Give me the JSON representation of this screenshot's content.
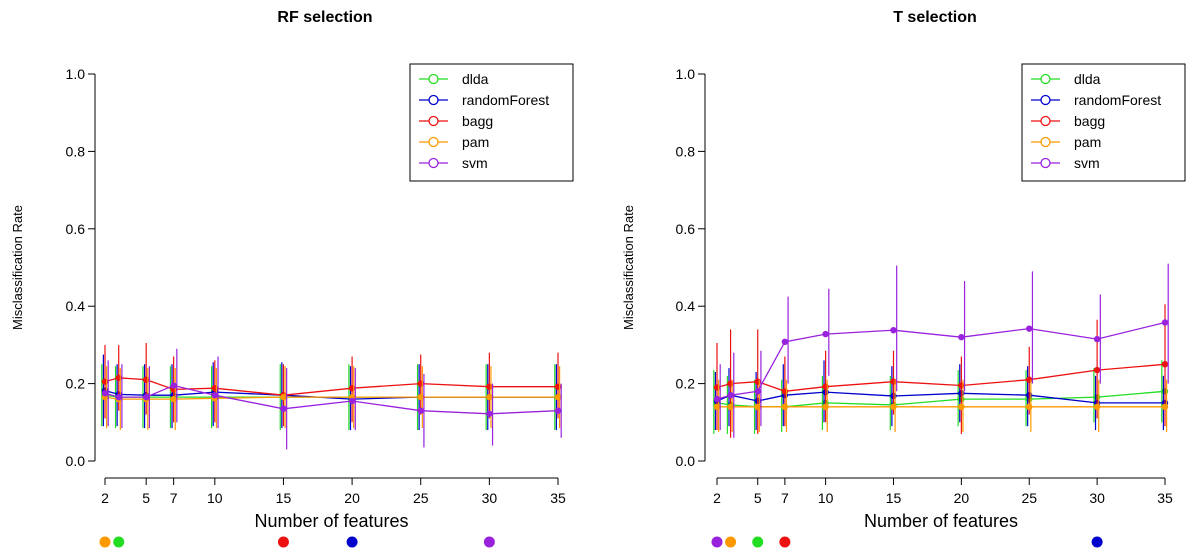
{
  "chart_data": [
    {
      "type": "line",
      "title": "RF selection",
      "xlabel": "Number of features",
      "ylabel": "Misclassification Rate",
      "ylim": [
        0,
        1
      ],
      "yticks": [
        "0.0",
        "0.2",
        "0.4",
        "0.6",
        "0.8",
        "1.0"
      ],
      "x": [
        2,
        3,
        5,
        7,
        10,
        15,
        20,
        25,
        30,
        35
      ],
      "xtick_labels": [
        "2",
        "5",
        "7",
        "10",
        "15",
        "20",
        "25",
        "30",
        "35"
      ],
      "legend_position": "top-right",
      "series": [
        {
          "name": "dlda",
          "color": "#22dd22",
          "values": [
            0.17,
            0.165,
            0.165,
            0.165,
            0.165,
            0.165,
            0.165,
            0.165,
            0.165,
            0.165
          ],
          "lower": [
            0.09,
            0.085,
            0.085,
            0.085,
            0.085,
            0.08,
            0.08,
            0.08,
            0.08,
            0.08
          ],
          "upper": [
            0.25,
            0.245,
            0.245,
            0.245,
            0.245,
            0.25,
            0.25,
            0.25,
            0.25,
            0.25
          ]
        },
        {
          "name": "randomForest",
          "color": "#0000cc",
          "values": [
            0.182,
            0.172,
            0.17,
            0.17,
            0.178,
            0.17,
            0.16,
            0.165,
            0.165,
            0.165
          ],
          "lower": [
            0.09,
            0.09,
            0.085,
            0.085,
            0.09,
            0.085,
            0.08,
            0.08,
            0.08,
            0.08
          ],
          "upper": [
            0.275,
            0.25,
            0.25,
            0.25,
            0.255,
            0.255,
            0.245,
            0.25,
            0.25,
            0.25
          ]
        },
        {
          "name": "bagg",
          "color": "#ee1111",
          "values": [
            0.205,
            0.215,
            0.21,
            0.185,
            0.188,
            0.17,
            0.188,
            0.2,
            0.192,
            0.192
          ],
          "lower": [
            0.11,
            0.13,
            0.12,
            0.1,
            0.1,
            0.09,
            0.1,
            0.12,
            0.11,
            0.11
          ],
          "upper": [
            0.3,
            0.3,
            0.305,
            0.27,
            0.26,
            0.25,
            0.27,
            0.275,
            0.28,
            0.28
          ]
        },
        {
          "name": "pam",
          "color": "#ff9900",
          "values": [
            0.165,
            0.16,
            0.16,
            0.16,
            0.162,
            0.165,
            0.165,
            0.165,
            0.165,
            0.165
          ],
          "lower": [
            0.085,
            0.08,
            0.08,
            0.08,
            0.085,
            0.085,
            0.085,
            0.085,
            0.085,
            0.085
          ],
          "upper": [
            0.245,
            0.24,
            0.24,
            0.24,
            0.24,
            0.245,
            0.245,
            0.245,
            0.245,
            0.245
          ]
        },
        {
          "name": "svm",
          "color": "#9922dd",
          "values": [
            0.175,
            0.165,
            0.165,
            0.195,
            0.17,
            0.135,
            0.155,
            0.13,
            0.122,
            0.13
          ],
          "lower": [
            0.09,
            0.085,
            0.085,
            0.1,
            0.085,
            0.03,
            0.08,
            0.035,
            0.04,
            0.06
          ],
          "upper": [
            0.26,
            0.25,
            0.245,
            0.29,
            0.27,
            0.24,
            0.24,
            0.225,
            0.2,
            0.2
          ]
        }
      ],
      "bottom_markers": [
        {
          "series": "pam",
          "color": "#ff9900",
          "x": 2
        },
        {
          "series": "dlda",
          "color": "#22dd22",
          "x": 3
        },
        {
          "series": "bagg",
          "color": "#ee1111",
          "x": 15
        },
        {
          "series": "randomForest",
          "color": "#0000cc",
          "x": 20
        },
        {
          "series": "svm",
          "color": "#9922dd",
          "x": 30
        }
      ]
    },
    {
      "type": "line",
      "title": "T selection",
      "xlabel": "Number of features",
      "ylabel": "Misclassification Rate",
      "ylim": [
        0,
        1
      ],
      "yticks": [
        "0.0",
        "0.2",
        "0.4",
        "0.6",
        "0.8",
        "1.0"
      ],
      "x": [
        2,
        3,
        5,
        7,
        10,
        15,
        20,
        25,
        30,
        35
      ],
      "xtick_labels": [
        "2",
        "5",
        "7",
        "10",
        "15",
        "20",
        "25",
        "30",
        "35"
      ],
      "legend_position": "top-right",
      "series": [
        {
          "name": "dlda",
          "color": "#22dd22",
          "values": [
            0.15,
            0.145,
            0.14,
            0.14,
            0.15,
            0.145,
            0.16,
            0.16,
            0.165,
            0.18
          ],
          "lower": [
            0.07,
            0.07,
            0.07,
            0.075,
            0.08,
            0.08,
            0.09,
            0.09,
            0.1,
            0.1
          ],
          "upper": [
            0.235,
            0.22,
            0.21,
            0.21,
            0.22,
            0.22,
            0.235,
            0.235,
            0.24,
            0.26
          ]
        },
        {
          "name": "randomForest",
          "color": "#0000cc",
          "values": [
            0.155,
            0.17,
            0.155,
            0.17,
            0.178,
            0.168,
            0.175,
            0.17,
            0.15,
            0.15
          ],
          "lower": [
            0.08,
            0.09,
            0.08,
            0.09,
            0.1,
            0.09,
            0.1,
            0.09,
            0.08,
            0.08
          ],
          "upper": [
            0.23,
            0.24,
            0.23,
            0.25,
            0.26,
            0.245,
            0.25,
            0.245,
            0.22,
            0.22
          ]
        },
        {
          "name": "bagg",
          "color": "#ee1111",
          "values": [
            0.19,
            0.2,
            0.205,
            0.18,
            0.192,
            0.205,
            0.195,
            0.21,
            0.235,
            0.25
          ],
          "lower": [
            0.08,
            0.06,
            0.07,
            0.09,
            0.1,
            0.12,
            0.07,
            0.12,
            0.11,
            0.09
          ],
          "upper": [
            0.305,
            0.34,
            0.34,
            0.27,
            0.285,
            0.285,
            0.27,
            0.295,
            0.365,
            0.405
          ]
        },
        {
          "name": "pam",
          "color": "#ff9900",
          "values": [
            0.14,
            0.14,
            0.14,
            0.14,
            0.14,
            0.14,
            0.14,
            0.14,
            0.14,
            0.14
          ],
          "lower": [
            0.075,
            0.075,
            0.075,
            0.075,
            0.075,
            0.075,
            0.075,
            0.075,
            0.075,
            0.075
          ],
          "upper": [
            0.21,
            0.21,
            0.21,
            0.21,
            0.21,
            0.21,
            0.21,
            0.21,
            0.21,
            0.21
          ]
        },
        {
          "name": "svm",
          "color": "#9922dd",
          "values": [
            0.16,
            0.17,
            0.18,
            0.308,
            0.328,
            0.338,
            0.32,
            0.342,
            0.315,
            0.358
          ],
          "lower": [
            0.08,
            0.06,
            0.09,
            0.2,
            0.22,
            0.18,
            0.18,
            0.2,
            0.2,
            0.2
          ],
          "upper": [
            0.25,
            0.28,
            0.285,
            0.425,
            0.445,
            0.505,
            0.465,
            0.49,
            0.43,
            0.51
          ]
        }
      ],
      "bottom_markers": [
        {
          "series": "svm",
          "color": "#9922dd",
          "x": 2
        },
        {
          "series": "pam",
          "color": "#ff9900",
          "x": 3
        },
        {
          "series": "dlda",
          "color": "#22dd22",
          "x": 5
        },
        {
          "series": "bagg",
          "color": "#ee1111",
          "x": 7
        },
        {
          "series": "randomForest",
          "color": "#0000cc",
          "x": 30
        }
      ]
    }
  ]
}
